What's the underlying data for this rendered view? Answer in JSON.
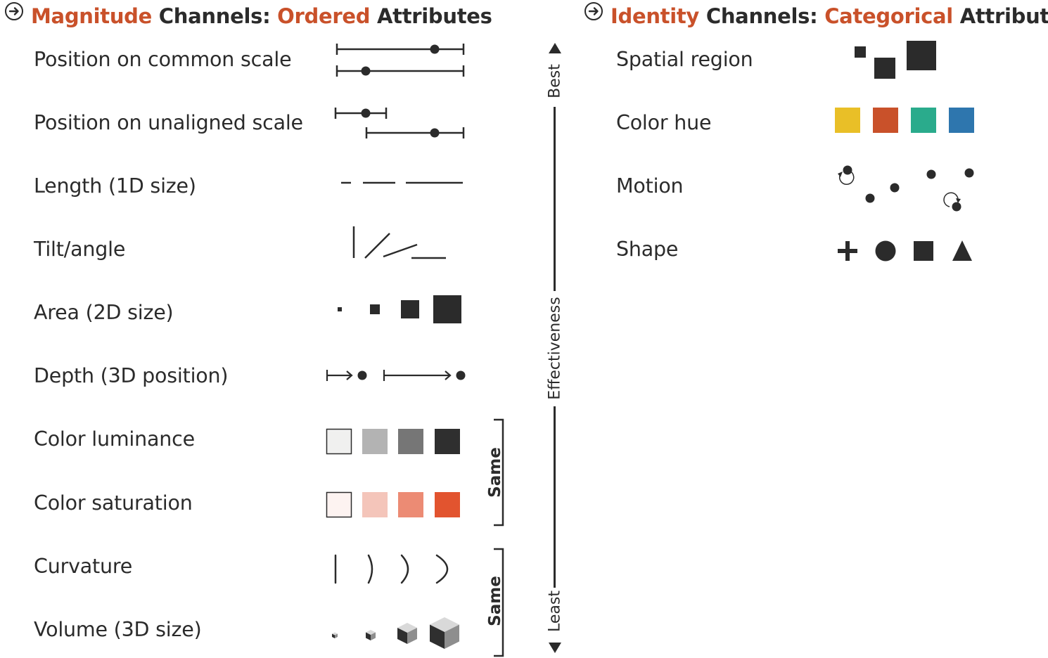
{
  "magnitude_panel": {
    "title": {
      "accent1": "Magnitude",
      "mid": " Channels: ",
      "accent2": "Ordered",
      "end": " Attributes"
    },
    "rows": [
      {
        "label": "Position on common scale",
        "glyph": "position-common-scale-glyph"
      },
      {
        "label": "Position on unaligned scale",
        "glyph": "position-unaligned-scale-glyph"
      },
      {
        "label": "Length (1D size)",
        "glyph": "length-glyph"
      },
      {
        "label": "Tilt/angle",
        "glyph": "tilt-angle-glyph"
      },
      {
        "label": "Area (2D size)",
        "glyph": "area-glyph"
      },
      {
        "label": "Depth (3D position)",
        "glyph": "depth-glyph"
      },
      {
        "label": "Color luminance",
        "glyph": "color-luminance-glyph"
      },
      {
        "label": "Color saturation",
        "glyph": "color-saturation-glyph"
      },
      {
        "label": "Curvature",
        "glyph": "curvature-glyph"
      },
      {
        "label": "Volume (3D size)",
        "glyph": "volume-glyph"
      }
    ],
    "same_bracket_1": "Same",
    "same_bracket_2": "Same"
  },
  "effectiveness_axis": {
    "top_label": "Best",
    "middle_label": "Effectiveness",
    "bottom_label": "Least"
  },
  "identity_panel": {
    "title": {
      "accent1": "Identity",
      "mid": " Channels: ",
      "accent2": "Categorical",
      "end": " Attributes"
    },
    "rows": [
      {
        "label": "Spatial region",
        "glyph": "spatial-region-glyph"
      },
      {
        "label": "Color hue",
        "glyph": "color-hue-glyph"
      },
      {
        "label": "Motion",
        "glyph": "motion-glyph"
      },
      {
        "label": "Shape",
        "glyph": "shape-glyph"
      }
    ]
  },
  "colors": {
    "accent": "#c9512a",
    "ink": "#2b2b2b",
    "luminance": [
      "#f0f0ef",
      "#b3b3b3",
      "#767676",
      "#2f2f2f"
    ],
    "saturation": [
      "#fdf3f1",
      "#f4c5ba",
      "#ec8b74",
      "#e2542f"
    ],
    "hue": [
      "#e9bf27",
      "#c9512a",
      "#2aab8c",
      "#2e76ae"
    ]
  }
}
